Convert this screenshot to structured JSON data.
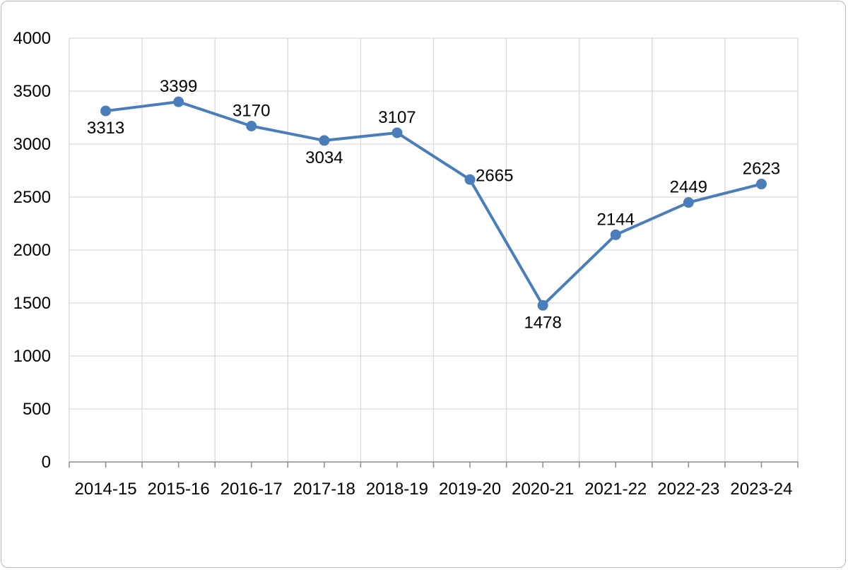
{
  "chart_data": {
    "type": "line",
    "title": "",
    "xlabel": "",
    "ylabel": "",
    "categories": [
      "2014-15",
      "2015-16",
      "2016-17",
      "2017-18",
      "2018-19",
      "2019-20",
      "2020-21",
      "2021-22",
      "2022-23",
      "2023-24"
    ],
    "series": [
      {
        "values": [
          3313,
          3399,
          3170,
          3034,
          3107,
          2665,
          1478,
          2144,
          2449,
          2623
        ],
        "color": "#4a7ebb",
        "marker": "circle",
        "data_labels": [
          "3313",
          "3399",
          "3170",
          "3034",
          "3107",
          "2665",
          "1478",
          "2144",
          "2449",
          "2623"
        ],
        "data_label_positions": [
          "below",
          "above",
          "above",
          "below",
          "above",
          "right",
          "below",
          "above",
          "above",
          "above"
        ]
      }
    ],
    "ylim": [
      0,
      4000
    ],
    "y_ticks": [
      0,
      500,
      1000,
      1500,
      2000,
      2500,
      3000,
      3500,
      4000
    ],
    "y_tick_labels": [
      "0",
      "500",
      "1000",
      "1500",
      "2000",
      "2500",
      "3000",
      "3500",
      "4000"
    ],
    "grid": true,
    "legend": "none"
  }
}
